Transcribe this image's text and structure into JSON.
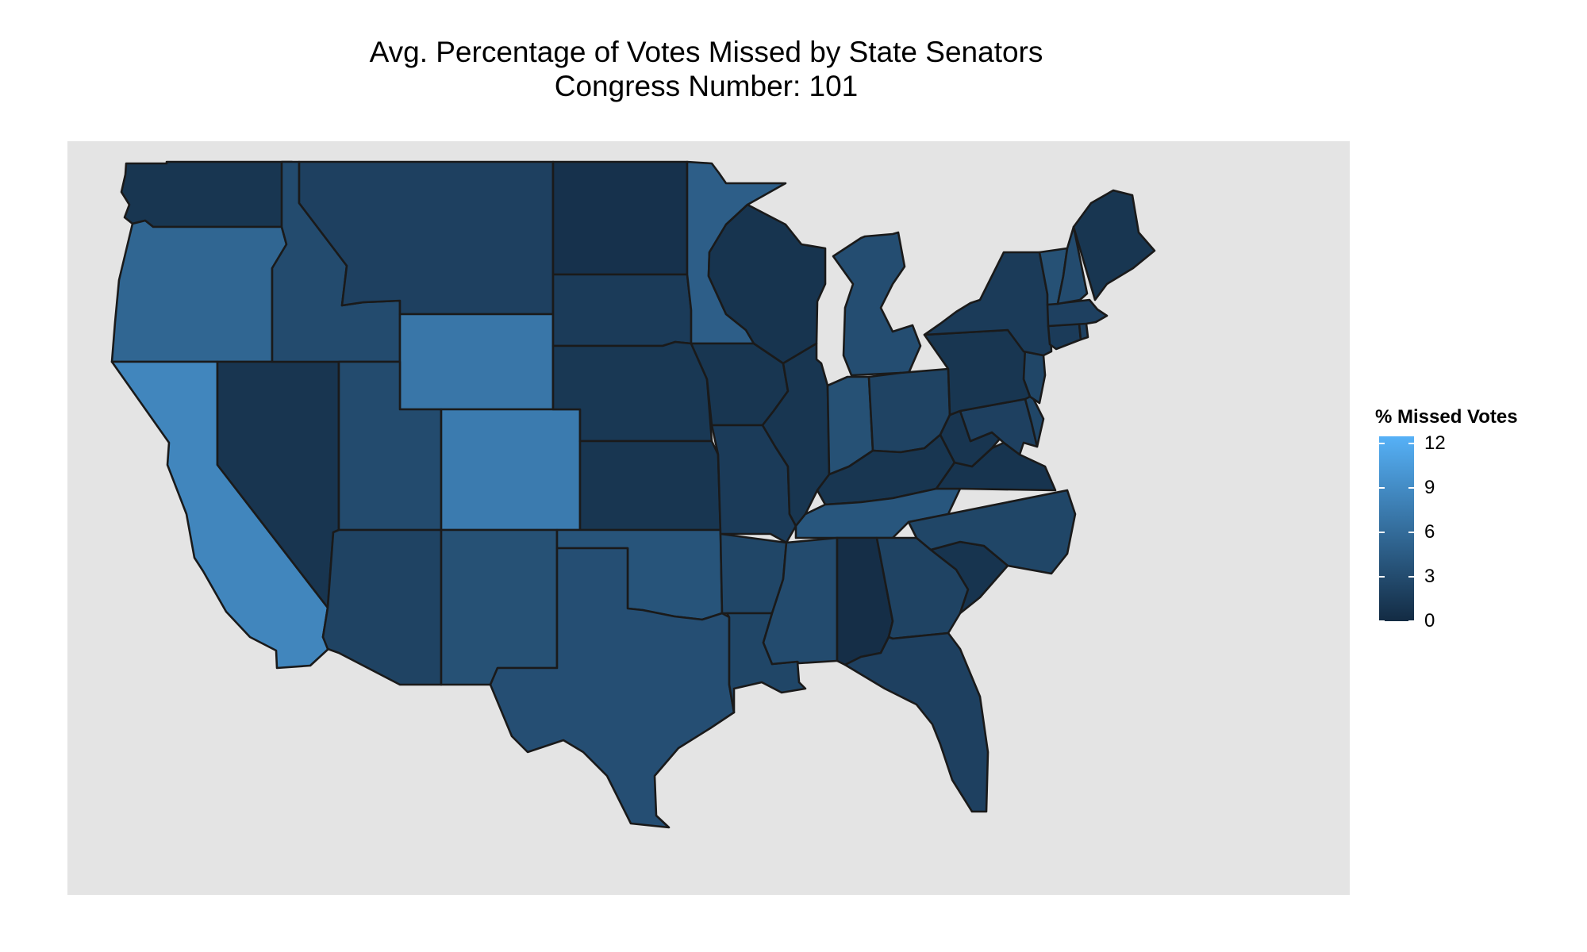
{
  "title": {
    "line1": "Avg. Percentage of Votes Missed by State Senators",
    "line2": "Congress Number: 101"
  },
  "legend": {
    "title": "% Missed Votes",
    "min": 0,
    "max": 12.5,
    "color_low": "#132b43",
    "color_high": "#56b1f7",
    "ticks": [
      {
        "value": 0,
        "label": "0"
      },
      {
        "value": 3,
        "label": "3"
      },
      {
        "value": 6,
        "label": "6"
      },
      {
        "value": 9,
        "label": "9"
      },
      {
        "value": 12,
        "label": "12"
      }
    ]
  },
  "map_data": {
    "type": "choropleth",
    "region": "contiguous United States",
    "border_color": "#1a1a1a",
    "background_color": "#e4e4e4",
    "states": [
      {
        "state": "WA",
        "value": 1.0
      },
      {
        "state": "OR",
        "value": 5.5
      },
      {
        "state": "CA",
        "value": 8.5
      },
      {
        "state": "NV",
        "value": 0.9
      },
      {
        "state": "ID",
        "value": 3.0
      },
      {
        "state": "MT",
        "value": 2.0
      },
      {
        "state": "WY",
        "value": 7.0
      },
      {
        "state": "UT",
        "value": 3.0
      },
      {
        "state": "AZ",
        "value": 2.2
      },
      {
        "state": "CO",
        "value": 7.5
      },
      {
        "state": "NM",
        "value": 3.5
      },
      {
        "state": "ND",
        "value": 0.6
      },
      {
        "state": "SD",
        "value": 1.5
      },
      {
        "state": "NE",
        "value": 1.2
      },
      {
        "state": "KS",
        "value": 1.0
      },
      {
        "state": "OK",
        "value": 3.8
      },
      {
        "state": "TX",
        "value": 3.3
      },
      {
        "state": "MN",
        "value": 4.8
      },
      {
        "state": "IA",
        "value": 1.0
      },
      {
        "state": "MO",
        "value": 1.5
      },
      {
        "state": "AR",
        "value": 2.5
      },
      {
        "state": "LA",
        "value": 2.5
      },
      {
        "state": "WI",
        "value": 0.8
      },
      {
        "state": "IL",
        "value": 1.0
      },
      {
        "state": "MI",
        "value": 3.2
      },
      {
        "state": "IN",
        "value": 3.5
      },
      {
        "state": "OH",
        "value": 2.2
      },
      {
        "state": "KY",
        "value": 1.0
      },
      {
        "state": "TN",
        "value": 4.0
      },
      {
        "state": "MS",
        "value": 3.0
      },
      {
        "state": "AL",
        "value": 0.3
      },
      {
        "state": "GA",
        "value": 2.2
      },
      {
        "state": "FL",
        "value": 2.0
      },
      {
        "state": "SC",
        "value": 0.8
      },
      {
        "state": "NC",
        "value": 2.5
      },
      {
        "state": "VA",
        "value": 0.8
      },
      {
        "state": "WV",
        "value": 0.9
      },
      {
        "state": "MD",
        "value": 2.0
      },
      {
        "state": "DE",
        "value": 2.5
      },
      {
        "state": "NJ",
        "value": 2.5
      },
      {
        "state": "PA",
        "value": 1.0
      },
      {
        "state": "NY",
        "value": 1.5
      },
      {
        "state": "CT",
        "value": 1.5
      },
      {
        "state": "RI",
        "value": 2.0
      },
      {
        "state": "MA",
        "value": 2.0
      },
      {
        "state": "VT",
        "value": 3.5
      },
      {
        "state": "NH",
        "value": 3.0
      },
      {
        "state": "ME",
        "value": 1.0
      }
    ]
  }
}
